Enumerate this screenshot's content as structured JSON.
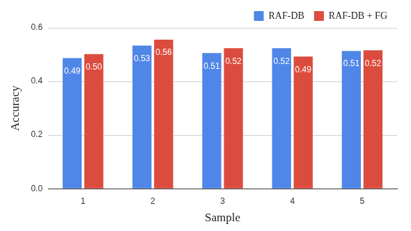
{
  "chart_data": {
    "type": "bar",
    "x_label": "Sample",
    "y_label": "Accuracy",
    "categories": [
      "1",
      "2",
      "3",
      "4",
      "5"
    ],
    "series": [
      {
        "name": "RAF-DB",
        "color": "#4f86e8",
        "values": [
          0.487,
          0.534,
          0.506,
          0.524,
          0.514
        ],
        "value_labels": [
          "0.49",
          "0.53",
          "0.51",
          "0.52",
          "0.51"
        ]
      },
      {
        "name": "RAF-DB + FG",
        "color": "#dc4c3e",
        "values": [
          0.502,
          0.556,
          0.524,
          0.493,
          0.516
        ],
        "value_labels": [
          "0.50",
          "0.56",
          "0.52",
          "0.49",
          "0.52"
        ]
      }
    ],
    "ylim": [
      0,
      0.6
    ],
    "yticks": [
      {
        "value": 0,
        "label": "0.0"
      },
      0.2,
      0.4,
      0.6
    ],
    "grid": true,
    "legend": "top-right",
    "data_labels": true
  }
}
